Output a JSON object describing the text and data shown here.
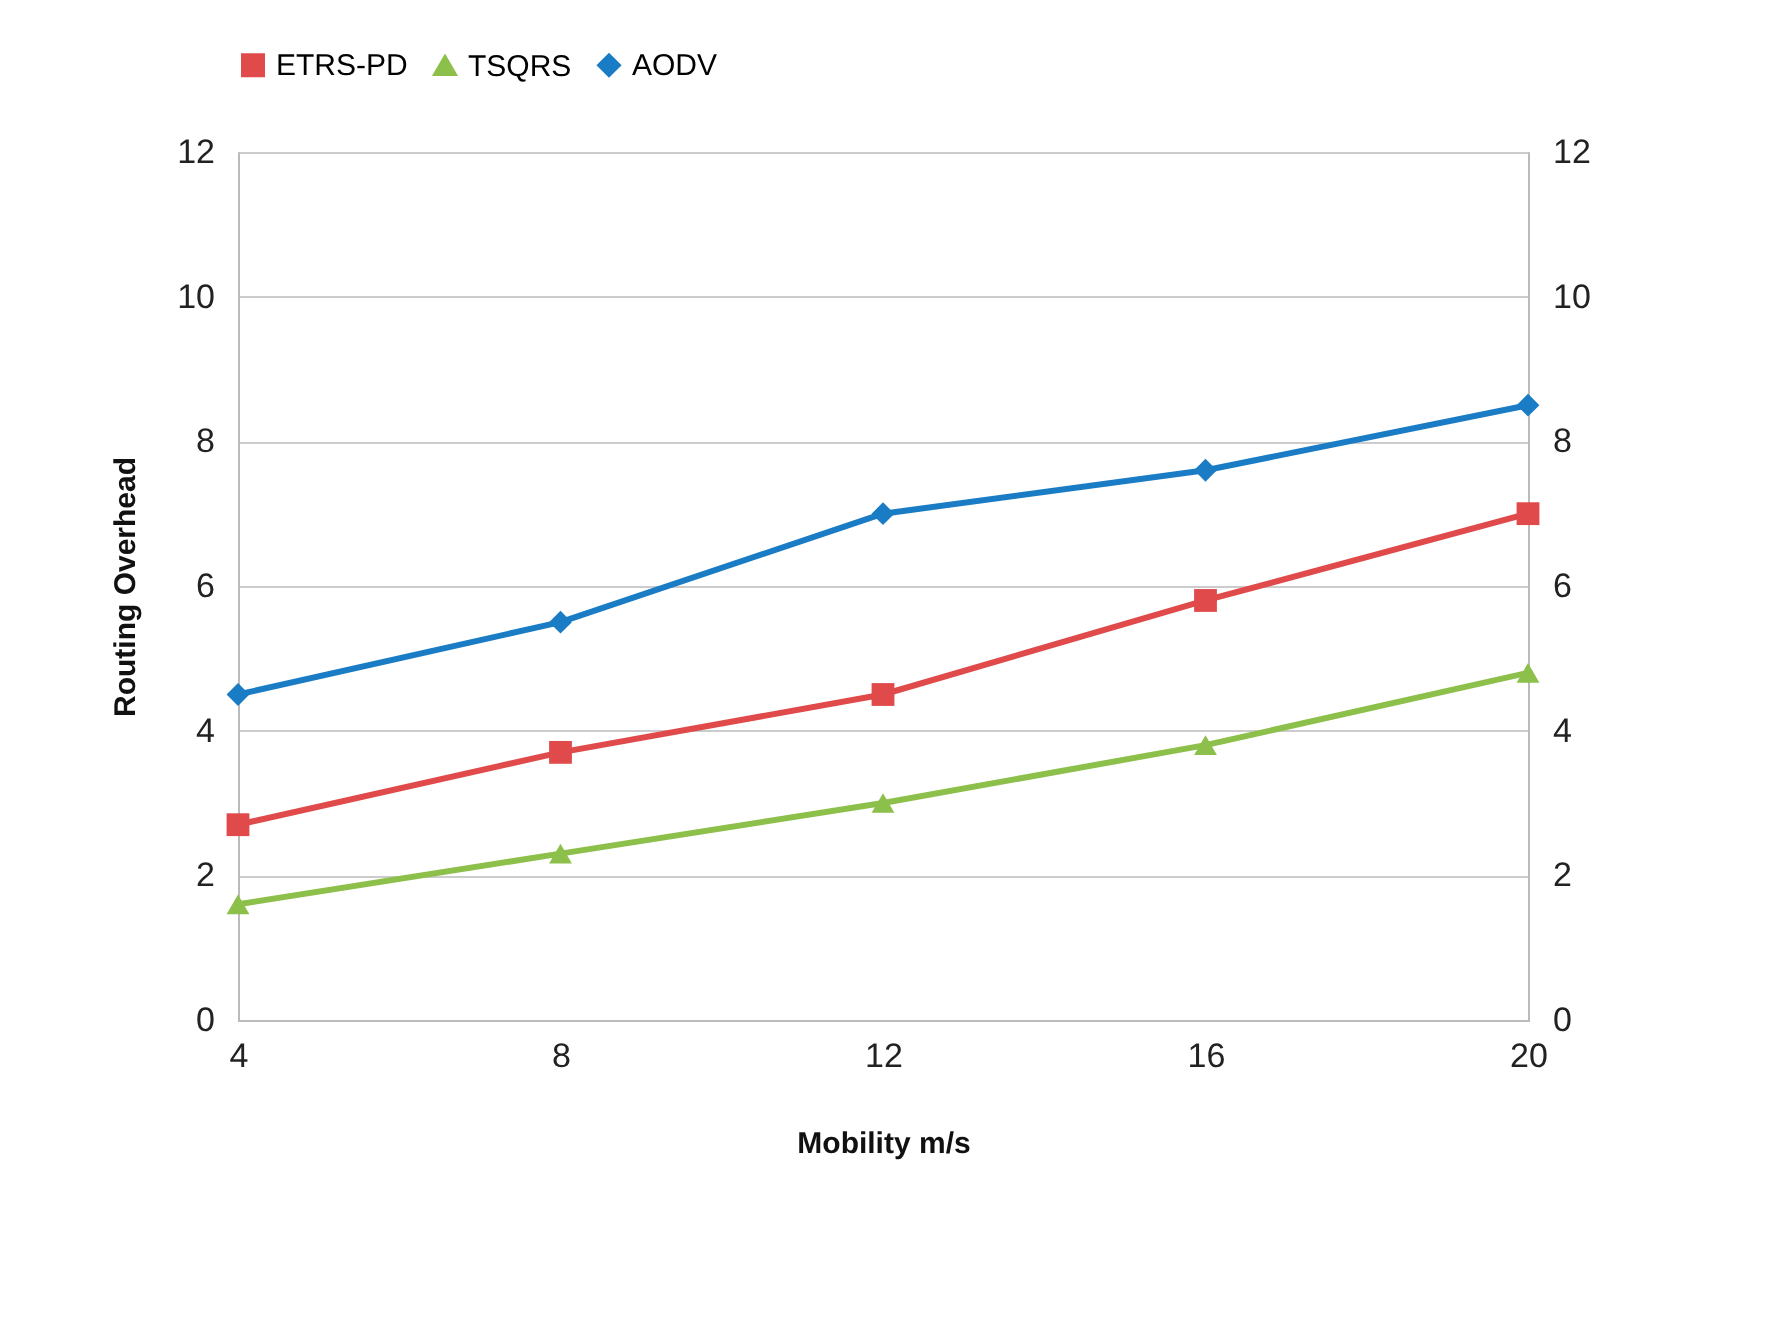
{
  "chart_data": {
    "type": "line",
    "xlabel": "Mobility m/s",
    "ylabel": "Routing Overhead",
    "x": [
      4,
      8,
      12,
      16,
      20
    ],
    "xlim": [
      4,
      20
    ],
    "xticks": [
      4,
      8,
      12,
      16,
      20
    ],
    "ylim": [
      0,
      12
    ],
    "yticks": [
      0,
      2,
      4,
      6,
      8,
      10,
      12
    ],
    "y2lim": [
      0,
      12
    ],
    "y2ticks": [
      0,
      2,
      4,
      6,
      8,
      10,
      12
    ],
    "grid": "y",
    "legend": "top",
    "line_style": "solid",
    "series": [
      {
        "name": "ETRS-PD",
        "color": "#e04a4a",
        "marker": "square",
        "values": [
          2.7,
          3.7,
          4.5,
          5.8,
          7.0
        ]
      },
      {
        "name": "TSQRS",
        "color": "#8cc04a",
        "marker": "triangle",
        "values": [
          1.6,
          2.3,
          3.0,
          3.8,
          4.8
        ]
      },
      {
        "name": "AODV",
        "color": "#1a7cc4",
        "marker": "diamond",
        "values": [
          4.5,
          5.5,
          7.0,
          7.6,
          8.5
        ]
      }
    ]
  }
}
